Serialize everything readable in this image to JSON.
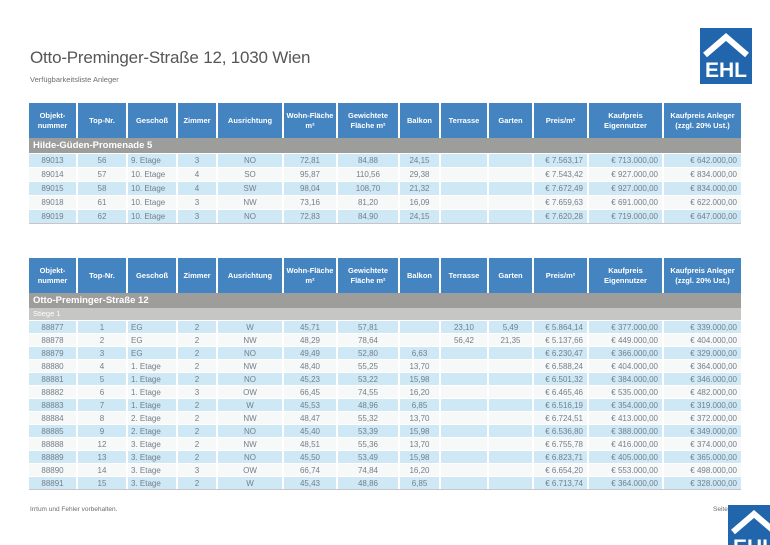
{
  "header": {
    "title": "Otto-Preminger-Straße 12, 1030 Wien",
    "subtitle": "Verfügbarkeitsliste Anleger"
  },
  "logo": {
    "text": "EHL"
  },
  "colors": {
    "logo_blue": "#2166ad",
    "table_header_blue": "#4484c1",
    "section_gray": "#9d9d9c",
    "subsection_gray": "#c6c6c5",
    "row_light_blue": "#cfe8f5",
    "row_white": "#f7f8f8"
  },
  "columns": [
    "Objekt-nummer",
    "Top-Nr.",
    "Geschoß",
    "Zimmer",
    "Ausrichtung",
    "Wohn-Fläche m²",
    "Gewichtete Fläche m²",
    "Balkon",
    "Terrasse",
    "Garten",
    "Preis/m²",
    "Kaufpreis Eigennutzer",
    "Kaufpreis Anleger (zzgl. 20% Ust.)"
  ],
  "tables": [
    {
      "section": "Hilde-Güden-Promenade 5",
      "subsection": null,
      "rows": [
        [
          "89013",
          "56",
          "9. Etage",
          "3",
          "NO",
          "72,81",
          "84,88",
          "24,15",
          "",
          "",
          "€ 7.563,17",
          "€ 713.000,00",
          "€ 642.000,00"
        ],
        [
          "89014",
          "57",
          "10. Etage",
          "4",
          "SO",
          "95,87",
          "110,56",
          "29,38",
          "",
          "",
          "€ 7.543,42",
          "€ 927.000,00",
          "€ 834.000,00"
        ],
        [
          "89015",
          "58",
          "10. Etage",
          "4",
          "SW",
          "98,04",
          "108,70",
          "21,32",
          "",
          "",
          "€ 7.672,49",
          "€ 927.000,00",
          "€ 834.000,00"
        ],
        [
          "89018",
          "61",
          "10. Etage",
          "3",
          "NW",
          "73,16",
          "81,20",
          "16,09",
          "",
          "",
          "€ 7.659,63",
          "€ 691.000,00",
          "€ 622.000,00"
        ],
        [
          "89019",
          "62",
          "10. Etage",
          "3",
          "NO",
          "72,83",
          "84,90",
          "24,15",
          "",
          "",
          "€ 7.620,28",
          "€ 719.000,00",
          "€ 647.000,00"
        ]
      ]
    },
    {
      "section": "Otto-Preminger-Straße 12",
      "subsection": "Stiege 1",
      "rows": [
        [
          "88877",
          "1",
          "EG",
          "2",
          "W",
          "45,71",
          "57,81",
          "",
          "23,10",
          "5,49",
          "€ 5.864,14",
          "€ 377.000,00",
          "€ 339.000,00"
        ],
        [
          "88878",
          "2",
          "EG",
          "2",
          "NW",
          "48,29",
          "78,64",
          "",
          "56,42",
          "21,35",
          "€ 5.137,66",
          "€ 449.000,00",
          "€ 404.000,00"
        ],
        [
          "88879",
          "3",
          "EG",
          "2",
          "NO",
          "49,49",
          "52,80",
          "6,63",
          "",
          "",
          "€ 6.230,47",
          "€ 366.000,00",
          "€ 329.000,00"
        ],
        [
          "88880",
          "4",
          "1. Etage",
          "2",
          "NW",
          "48,40",
          "55,25",
          "13,70",
          "",
          "",
          "€ 6.588,24",
          "€ 404.000,00",
          "€ 364.000,00"
        ],
        [
          "88881",
          "5",
          "1. Etage",
          "2",
          "NO",
          "45,23",
          "53,22",
          "15,98",
          "",
          "",
          "€ 6.501,32",
          "€ 384.000,00",
          "€ 346.000,00"
        ],
        [
          "88882",
          "6",
          "1. Etage",
          "3",
          "OW",
          "66,45",
          "74,55",
          "16,20",
          "",
          "",
          "€ 6.465,46",
          "€ 535.000,00",
          "€ 482.000,00"
        ],
        [
          "88883",
          "7",
          "1. Etage",
          "2",
          "W",
          "45,53",
          "48,96",
          "6,85",
          "",
          "",
          "€ 6.516,19",
          "€ 354.000,00",
          "€ 319.000,00"
        ],
        [
          "88884",
          "8",
          "2. Etage",
          "2",
          "NW",
          "48,47",
          "55,32",
          "13,70",
          "",
          "",
          "€ 6.724,51",
          "€ 413.000,00",
          "€ 372.000,00"
        ],
        [
          "88885",
          "9",
          "2. Etage",
          "2",
          "NO",
          "45,40",
          "53,39",
          "15,98",
          "",
          "",
          "€ 6.536,80",
          "€ 388.000,00",
          "€ 349.000,00"
        ],
        [
          "88888",
          "12",
          "3. Etage",
          "2",
          "NW",
          "48,51",
          "55,36",
          "13,70",
          "",
          "",
          "€ 6.755,78",
          "€ 416.000,00",
          "€ 374.000,00"
        ],
        [
          "88889",
          "13",
          "3. Etage",
          "2",
          "NO",
          "45,50",
          "53,49",
          "15,98",
          "",
          "",
          "€ 6.823,71",
          "€ 405.000,00",
          "€ 365.000,00"
        ],
        [
          "88890",
          "14",
          "3. Etage",
          "3",
          "OW",
          "66,74",
          "74,84",
          "16,20",
          "",
          "",
          "€ 6.654,20",
          "€ 553.000,00",
          "€ 498.000,00"
        ],
        [
          "88891",
          "15",
          "3. Etage",
          "2",
          "W",
          "45,43",
          "48,86",
          "6,85",
          "",
          "",
          "€ 6.713,74",
          "€ 364.000,00",
          "€ 328.000,00"
        ]
      ]
    }
  ],
  "footer": {
    "left": "Irrtum und Fehler vorbehalten.",
    "right": "Seite 1"
  }
}
